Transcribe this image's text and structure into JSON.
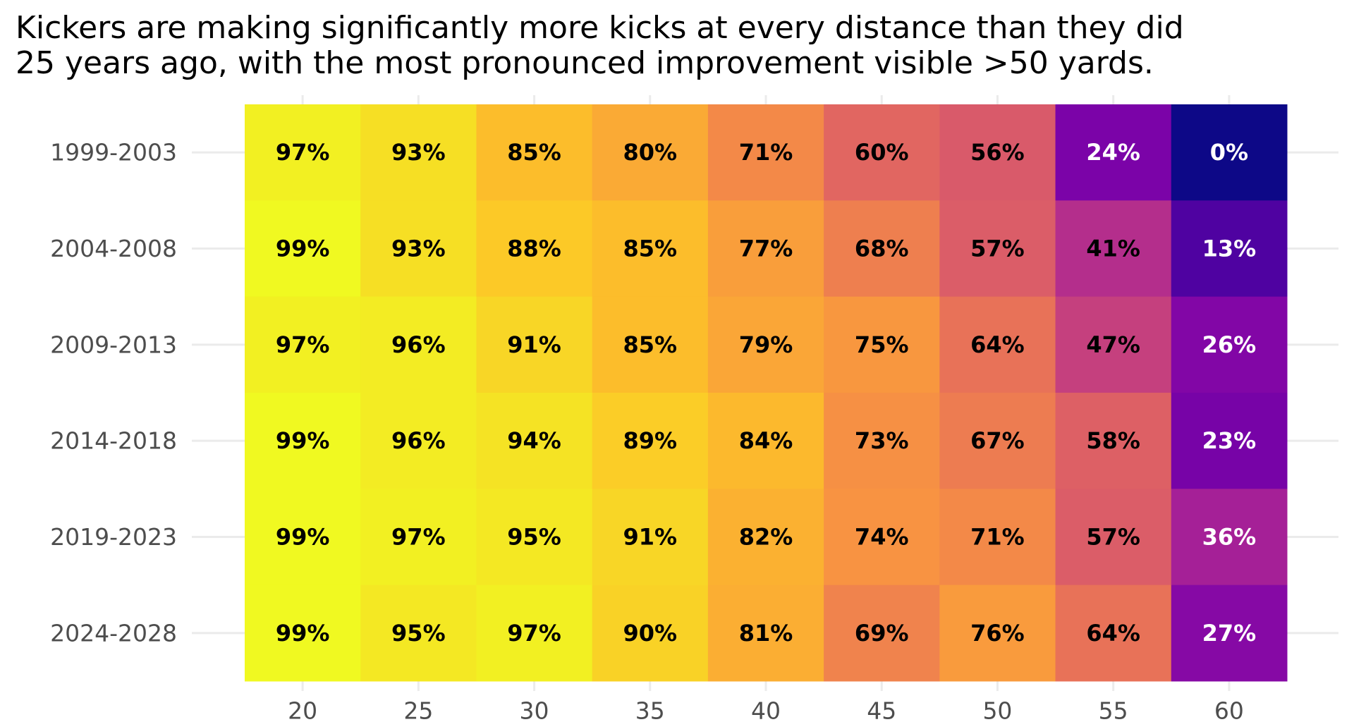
{
  "chart_data": {
    "type": "heatmap",
    "title": [
      "Kickers are making significantly more kicks at every distance than they did",
      "25 years ago, with the most pronounced improvement visible >50 yards."
    ],
    "columns": [
      20,
      25,
      30,
      35,
      40,
      45,
      50,
      55,
      60
    ],
    "rows": [
      "1999-2003",
      "2004-2008",
      "2009-2013",
      "2014-2018",
      "2019-2023",
      "2024-2028"
    ],
    "values": [
      [
        97,
        93,
        85,
        80,
        71,
        60,
        56,
        24,
        0
      ],
      [
        99,
        93,
        88,
        85,
        77,
        68,
        57,
        41,
        13
      ],
      [
        97,
        96,
        91,
        85,
        79,
        75,
        64,
        47,
        26
      ],
      [
        99,
        96,
        94,
        89,
        84,
        73,
        67,
        58,
        23
      ],
      [
        99,
        97,
        95,
        91,
        82,
        74,
        71,
        57,
        36
      ],
      [
        99,
        95,
        97,
        90,
        81,
        69,
        76,
        64,
        27
      ]
    ],
    "value_labels": [
      [
        "97%",
        "93%",
        "85%",
        "80%",
        "71%",
        "60%",
        "56%",
        "24%",
        "0%"
      ],
      [
        "99%",
        "93%",
        "88%",
        "85%",
        "77%",
        "68%",
        "57%",
        "41%",
        "13%"
      ],
      [
        "97%",
        "96%",
        "91%",
        "85%",
        "79%",
        "75%",
        "64%",
        "47%",
        "26%"
      ],
      [
        "99%",
        "96%",
        "94%",
        "89%",
        "84%",
        "73%",
        "67%",
        "58%",
        "23%"
      ],
      [
        "99%",
        "97%",
        "95%",
        "91%",
        "82%",
        "74%",
        "71%",
        "57%",
        "36%"
      ],
      [
        "99%",
        "95%",
        "97%",
        "90%",
        "81%",
        "69%",
        "76%",
        "64%",
        "27%"
      ]
    ],
    "colormap": "plasma",
    "grid": true
  }
}
